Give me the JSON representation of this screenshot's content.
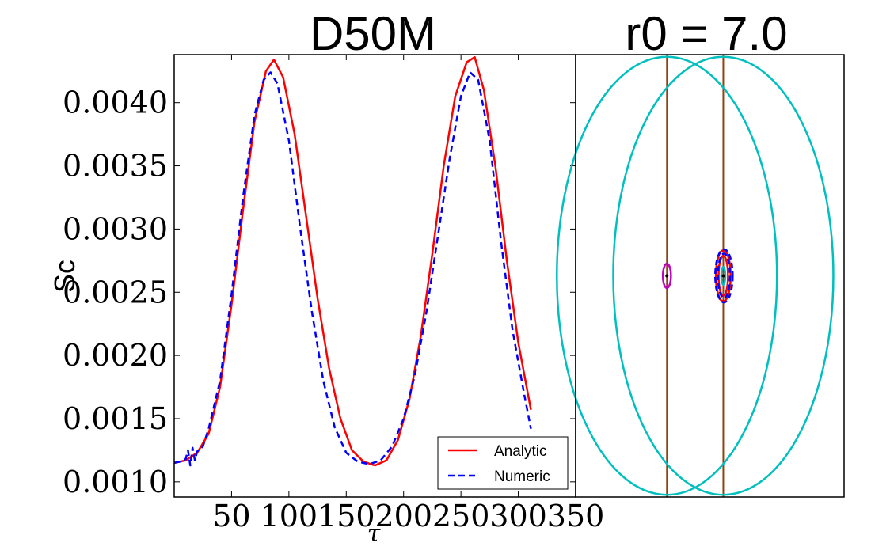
{
  "chart_data": [
    {
      "type": "line",
      "title": "D50M",
      "xlabel": "τ",
      "ylabel": "Sc",
      "xlim": [
        0,
        350
      ],
      "ylim": [
        0.00088,
        0.00438
      ],
      "xticks": [
        50,
        100,
        150,
        200,
        250,
        300,
        350
      ],
      "xtick_labels": [
        "50",
        "100",
        "150",
        "200",
        "250",
        "300",
        "350"
      ],
      "yticks": [
        0.001,
        0.0015,
        0.002,
        0.0025,
        0.003,
        0.0035,
        0.004
      ],
      "ytick_labels": [
        "0.0010",
        "0.0015",
        "0.0020",
        "0.0025",
        "0.0030",
        "0.0035",
        "0.0040"
      ],
      "legend_position": "bottom-right",
      "series": [
        {
          "name": "Analytic",
          "color": "#ff0000",
          "style": "solid",
          "x": [
            0,
            10,
            20,
            30,
            40,
            50,
            60,
            70,
            80,
            87,
            95,
            105,
            115,
            125,
            135,
            145,
            155,
            165,
            175,
            185,
            195,
            205,
            215,
            225,
            235,
            245,
            255,
            262,
            270,
            280,
            290,
            300,
            311
          ],
          "y": [
            0.00115,
            0.00117,
            0.00123,
            0.00138,
            0.00175,
            0.0024,
            0.00315,
            0.00385,
            0.00425,
            0.00434,
            0.0042,
            0.00375,
            0.0031,
            0.00245,
            0.0019,
            0.0015,
            0.00125,
            0.00116,
            0.00113,
            0.00117,
            0.00133,
            0.00165,
            0.00215,
            0.0028,
            0.0035,
            0.00405,
            0.00432,
            0.00436,
            0.0041,
            0.0035,
            0.00275,
            0.0021,
            0.00157
          ]
        },
        {
          "name": "Numeric",
          "color": "#0000ff",
          "style": "dashed",
          "x": [
            0,
            5,
            10,
            12,
            14,
            16,
            18,
            20,
            25,
            30,
            40,
            50,
            60,
            70,
            78,
            84,
            90,
            100,
            110,
            120,
            130,
            140,
            150,
            160,
            170,
            180,
            190,
            200,
            210,
            220,
            230,
            240,
            250,
            258,
            265,
            275,
            285,
            295,
            305,
            311
          ],
          "y": [
            0.00115,
            0.00116,
            0.00118,
            0.00125,
            0.00113,
            0.00127,
            0.00117,
            0.00124,
            0.00128,
            0.00142,
            0.0018,
            0.00248,
            0.00325,
            0.0039,
            0.00418,
            0.00424,
            0.00415,
            0.0037,
            0.003,
            0.00235,
            0.0018,
            0.00143,
            0.00123,
            0.00116,
            0.00114,
            0.00117,
            0.00128,
            0.0015,
            0.00185,
            0.00235,
            0.00295,
            0.00355,
            0.00405,
            0.00424,
            0.00418,
            0.0037,
            0.0029,
            0.0022,
            0.0017,
            0.00142
          ]
        }
      ]
    },
    {
      "type": "scatter",
      "title": "r0 = 7.0",
      "description_kind": "orbit-diagram",
      "xlim": [
        -1,
        1
      ],
      "ylim": [
        -1,
        1
      ],
      "colors": {
        "large_orbit": "#00bfbf",
        "vertical_line": "#8b4513",
        "analytic": "#ff0000",
        "numeric": "#0000ff",
        "small_orbit": "#bf00bf"
      },
      "large_orbits": [
        {
          "cx": -0.32,
          "cy": 0.0,
          "rx": 0.82,
          "ry": 0.99
        },
        {
          "cx": 0.1,
          "cy": 0.0,
          "rx": 0.82,
          "ry": 0.99
        }
      ],
      "vertical_lines_x": [
        -0.32,
        0.1
      ],
      "small_orbits": [
        {
          "color_key": "small_orbit",
          "cx": -0.32,
          "cy": 0.0,
          "rx": 0.03,
          "ry": 0.055,
          "style": "solid"
        },
        {
          "color_key": "analytic",
          "cx": 0.1,
          "cy": 0.0,
          "rx": 0.035,
          "ry": 0.09,
          "style": "solid"
        },
        {
          "color_key": "analytic",
          "cx": 0.1,
          "cy": 0.0,
          "rx": 0.055,
          "ry": 0.115,
          "style": "solid"
        },
        {
          "color_key": "numeric",
          "cx": 0.105,
          "cy": 0.0,
          "rx": 0.045,
          "ry": 0.1,
          "style": "dashed"
        },
        {
          "color_key": "numeric",
          "cx": 0.105,
          "cy": 0.0,
          "rx": 0.065,
          "ry": 0.12,
          "style": "dashed"
        },
        {
          "color_key": "large_orbit",
          "cx": 0.1,
          "cy": 0.0,
          "rx": 0.015,
          "ry": 0.04,
          "style": "solid"
        }
      ],
      "center_points": [
        [
          -0.32,
          0.0
        ],
        [
          0.1,
          0.0
        ]
      ]
    }
  ]
}
